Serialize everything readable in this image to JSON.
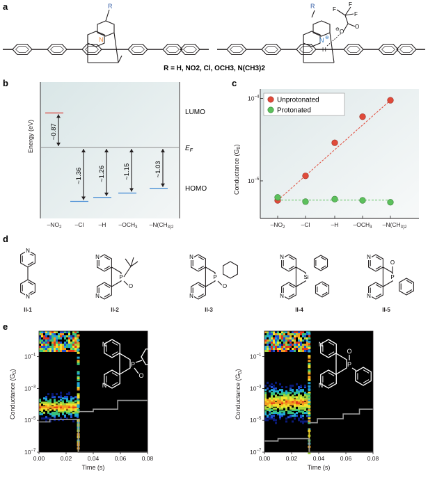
{
  "panels": {
    "a": "a",
    "b": "b",
    "c": "c",
    "d": "d",
    "e": "e"
  },
  "panel_a": {
    "r_group_caption": "R = H, NO2, Cl, OCH3, N(CH3)2",
    "r_label": "R",
    "n_label": "N",
    "h_label": "H",
    "f_label": "F",
    "o_label": "O",
    "charge": "⊖",
    "plus": "⊕",
    "colors": {
      "nitrogen_left": "#e8883a",
      "nitrogen_right": "#3a7fc4",
      "r_group": "#3a62a8"
    }
  },
  "panel_b": {
    "y_axis_label": "Energy (eV)",
    "lumo_label": "LUMO",
    "homo_label": "HOMO",
    "fermi_label": "E",
    "fermi_sub": "F",
    "gaps": [
      {
        "substituent": "-NO2",
        "value": "~0.87",
        "level": "lumo"
      },
      {
        "substituent": "-Cl",
        "value": "~1.36",
        "level": "homo"
      },
      {
        "substituent": "-H",
        "value": "~1.26",
        "level": "homo"
      },
      {
        "substituent": "-OCH3",
        "value": "~1.15",
        "level": "homo"
      },
      {
        "substituent": "-N(CH3)2",
        "value": "~1.03",
        "level": "homo"
      }
    ],
    "x_ticks": [
      "–NO",
      "–Cl",
      "–H",
      "–OCH",
      "–N(CH"
    ],
    "x_tick_subs": [
      "2",
      "",
      "",
      "3",
      "3)2"
    ],
    "colors": {
      "lumo_line": "#d9413a",
      "homo_line": "#4a8fd6",
      "fermi_line": "#8c8c8c"
    }
  },
  "chart_data": [
    {
      "type": "scatter",
      "panel": "c",
      "ylabel": "Conductance (G0)",
      "y_scale": "log",
      "ylim": [
        3.5e-06,
        0.00013
      ],
      "y_tick_labels": [
        "10−5",
        "10−4"
      ],
      "categories": [
        "–NO2",
        "–Cl",
        "–H",
        "–OCH3",
        "–N(CH3)2"
      ],
      "series": [
        {
          "name": "Unprotonated",
          "values": [
            5.8e-06,
            1.15e-05,
            2.9e-05,
            6e-05,
            9.5e-05
          ],
          "color": "#e04a3a"
        },
        {
          "name": "Protonated",
          "values": [
            6.3e-06,
            5.6e-06,
            6e-06,
            5.8e-06,
            5.5e-06
          ],
          "color": "#5cc05c"
        }
      ],
      "legend": "top-left"
    },
    {
      "type": "heatmap",
      "panel": "e-left",
      "xlabel": "Time (s)",
      "ylabel": "Conductance (G0)",
      "x_ticks": [
        "0.00",
        "0.02",
        "0.04",
        "0.06",
        "0.08"
      ],
      "y_tick_labels": [
        "10−1",
        "10−3",
        "10−5",
        "10−7"
      ],
      "y_scale": "log"
    },
    {
      "type": "heatmap",
      "panel": "e-right",
      "xlabel": "Time (s)",
      "ylabel": "Conductance (G0)",
      "x_ticks": [
        "0.00",
        "0.02",
        "0.04",
        "0.06",
        "0.08"
      ],
      "y_tick_labels": [
        "10−1",
        "10−3",
        "10−5",
        "10−7"
      ],
      "y_scale": "log"
    }
  ],
  "panel_c_tick_text": {
    "y_ticks": [
      {
        "base": "10",
        "exp": "−4"
      },
      {
        "base": "10",
        "exp": "−5"
      }
    ],
    "ylabel_main": "Conductance (G",
    "ylabel_sub": "0",
    "ylabel_end": ")"
  },
  "panel_d": {
    "compounds": [
      "II-1",
      "II-2",
      "II-3",
      "II-4",
      "II-5"
    ],
    "atoms": {
      "N": "N",
      "P": "P",
      "O": "O",
      "Si": "Si"
    }
  },
  "panel_e": {
    "xlabel": "Time (s)",
    "ylabel_main": "Conductance (G",
    "ylabel_sub": "0",
    "ylabel_end": ")",
    "y_ticks": [
      {
        "base": "10",
        "exp": "−1"
      },
      {
        "base": "10",
        "exp": "−3"
      },
      {
        "base": "10",
        "exp": "−5"
      },
      {
        "base": "10",
        "exp": "−7"
      }
    ],
    "x_ticks": [
      "0.00",
      "0.02",
      "0.04",
      "0.06",
      "0.08"
    ],
    "atoms": {
      "N": "N",
      "P": "P",
      "O": "O"
    }
  }
}
